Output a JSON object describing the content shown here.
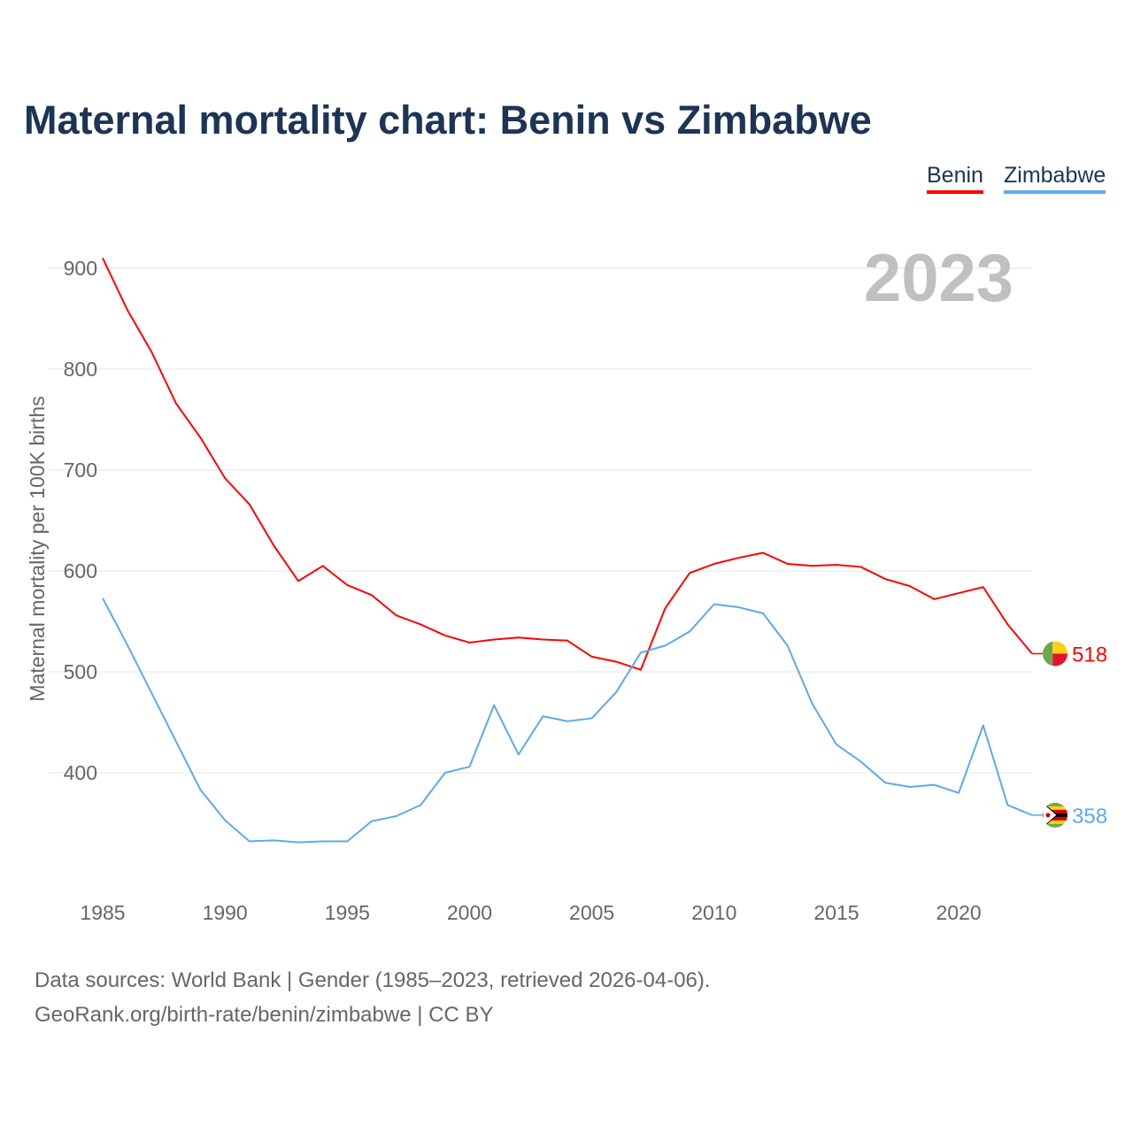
{
  "title": "Maternal mortality chart: Benin vs Zimbabwe",
  "footer": {
    "line1": "Data sources: World Bank | Gender (1985–2023, retrieved 2026-04-06).",
    "line2": "GeoRank.org/birth-rate/benin/zimbabwe | CC BY"
  },
  "chart_data": {
    "type": "line",
    "title": "Maternal mortality chart: Benin vs Zimbabwe",
    "ylabel": "Maternal mortality per 100K births",
    "xlabel": "",
    "year_label": "2023",
    "xlim": [
      1985,
      2023
    ],
    "ylim": [
      300,
      920
    ],
    "x_ticks": [
      "1985",
      "1990",
      "1995",
      "2000",
      "2005",
      "2010",
      "2015",
      "2020"
    ],
    "y_ticks": [
      "400",
      "500",
      "600",
      "700",
      "800",
      "900"
    ],
    "grid": true,
    "legend": "top-right",
    "x": [
      1985,
      1986,
      1987,
      1988,
      1989,
      1990,
      1991,
      1992,
      1993,
      1994,
      1995,
      1996,
      1997,
      1998,
      1999,
      2000,
      2001,
      2002,
      2003,
      2004,
      2005,
      2006,
      2007,
      2008,
      2009,
      2010,
      2011,
      2012,
      2013,
      2014,
      2015,
      2016,
      2017,
      2018,
      2019,
      2020,
      2021,
      2022,
      2023
    ],
    "series": [
      {
        "name": "Benin",
        "color": "#ff0000",
        "end_label": "518",
        "values": [
          910,
          859,
          817,
          766,
          732,
          692,
          666,
          625,
          590,
          605,
          586,
          576,
          556,
          547,
          536,
          529,
          532,
          534,
          532,
          531,
          515,
          510,
          502,
          563,
          598,
          607,
          613,
          618,
          607,
          605,
          606,
          604,
          592,
          585,
          572,
          578,
          584,
          547,
          518
        ]
      },
      {
        "name": "Zimbabwe",
        "color": "#5ea8ee",
        "end_label": "358",
        "values": [
          573,
          527,
          479,
          431,
          383,
          353,
          332,
          333,
          331,
          332,
          332,
          352,
          357,
          368,
          400,
          406,
          467,
          418,
          456,
          451,
          454,
          480,
          519,
          526,
          540,
          567,
          564,
          558,
          526,
          469,
          428,
          411,
          390,
          386,
          388,
          380,
          447,
          368,
          358
        ]
      }
    ]
  }
}
